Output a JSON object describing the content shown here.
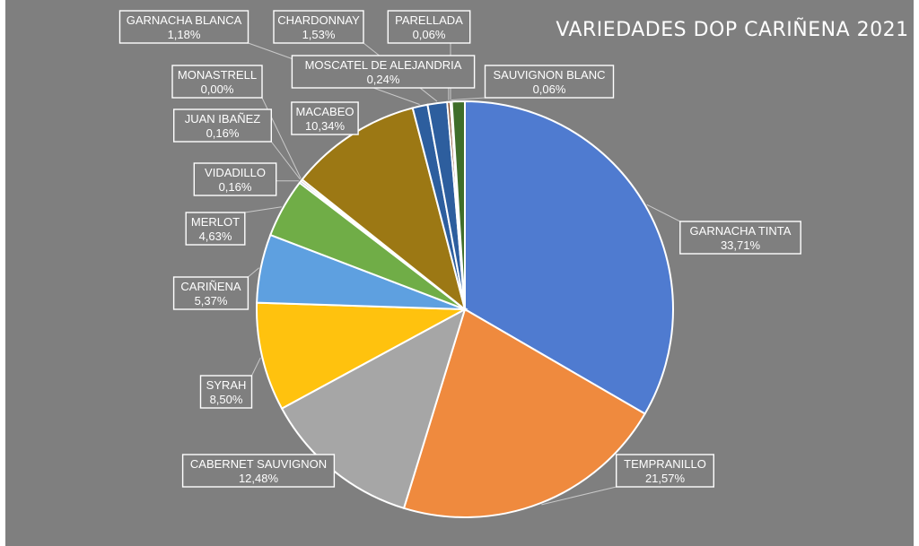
{
  "chart_data": {
    "type": "pie",
    "title": "VARIEDADES DOP CARIÑENA 2021",
    "slices": [
      {
        "label": "GARNACHA TINTA",
        "value": 33.71,
        "value_label": "33,71%",
        "color": "#4f7bd0"
      },
      {
        "label": "TEMPRANILLO",
        "value": 21.57,
        "value_label": "21,57%",
        "color": "#ef8a3e"
      },
      {
        "label": "CABERNET SAUVIGNON",
        "value": 12.48,
        "value_label": "12,48%",
        "color": "#a6a6a6"
      },
      {
        "label": "SYRAH",
        "value": 8.5,
        "value_label": "8,50%",
        "color": "#ffc20e"
      },
      {
        "label": "CARIÑENA",
        "value": 5.37,
        "value_label": "5,37%",
        "color": "#5ea0e0"
      },
      {
        "label": "MERLOT",
        "value": 4.63,
        "value_label": "4,63%",
        "color": "#70ad47"
      },
      {
        "label": "VIDADILLO",
        "value": 0.16,
        "value_label": "0,16%",
        "color": "#2f4f8a"
      },
      {
        "label": "JUAN IBAÑEZ",
        "value": 0.16,
        "value_label": "0,16%",
        "color": "#a34a1c"
      },
      {
        "label": "MONASTRELL",
        "value": 0.0,
        "value_label": "0,00%",
        "color": "#606060"
      },
      {
        "label": "MACABEO",
        "value": 10.34,
        "value_label": "10,34%",
        "color": "#9c7814"
      },
      {
        "label": "GARNACHA BLANCA",
        "value": 1.18,
        "value_label": "1,18%",
        "color": "#2d5e9e"
      },
      {
        "label": "CHARDONNAY",
        "value": 1.53,
        "value_label": "1,53%",
        "color": "#2d5e9e"
      },
      {
        "label": "MOSCATEL DE ALEJANDRIA",
        "value": 0.24,
        "value_label": "0,24%",
        "color": "#7a3d18"
      },
      {
        "label": "PARELLADA",
        "value": 0.06,
        "value_label": "0,06%",
        "color": "#5a5a5a"
      },
      {
        "label": "SAUVIGNON BLANC",
        "value": 0.06,
        "value_label": "0,06%",
        "color": "#4a7a2c"
      },
      {
        "label": "",
        "value": 1.01,
        "value_label": "",
        "color": "#3f6e2a"
      }
    ],
    "legend": "none"
  }
}
